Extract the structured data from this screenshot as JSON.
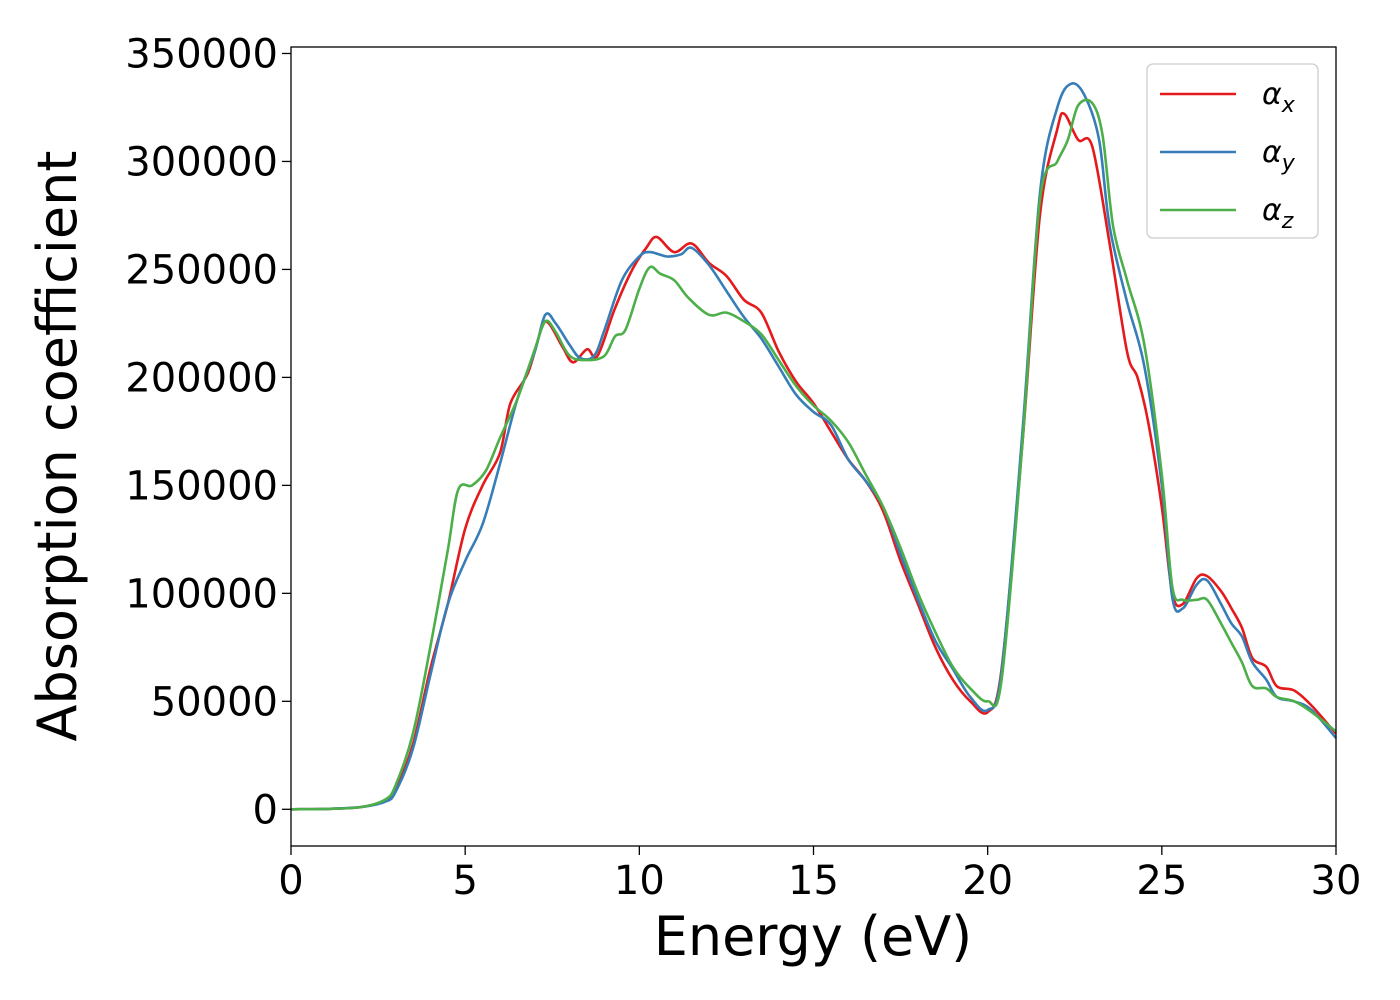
{
  "chart_data": {
    "type": "line",
    "title": "",
    "xlabel": "Energy (eV)",
    "ylabel": "Absorption coefficient",
    "xlim": [
      0,
      30
    ],
    "ylim": [
      -17000,
      353000
    ],
    "x_ticks": [
      0,
      5,
      10,
      15,
      20,
      25,
      30
    ],
    "y_ticks": [
      0,
      50000,
      100000,
      150000,
      200000,
      250000,
      300000,
      350000
    ],
    "grid": false,
    "legend_position": "top-right",
    "series": [
      {
        "name": "α",
        "subscript": "x",
        "color": "#e41a1c",
        "points": [
          [
            0,
            0
          ],
          [
            1,
            200
          ],
          [
            2,
            1000
          ],
          [
            2.7,
            4000
          ],
          [
            3,
            9000
          ],
          [
            3.5,
            30000
          ],
          [
            4,
            65000
          ],
          [
            4.5,
            95000
          ],
          [
            5,
            130000
          ],
          [
            5.5,
            150000
          ],
          [
            6,
            165000
          ],
          [
            6.3,
            188000
          ],
          [
            6.8,
            202000
          ],
          [
            7.2,
            223000
          ],
          [
            7.4,
            225000
          ],
          [
            7.8,
            214000
          ],
          [
            8.1,
            207000
          ],
          [
            8.5,
            213000
          ],
          [
            8.8,
            210000
          ],
          [
            9.3,
            232000
          ],
          [
            9.8,
            250000
          ],
          [
            10.2,
            260000
          ],
          [
            10.5,
            265000
          ],
          [
            11,
            258000
          ],
          [
            11.5,
            262000
          ],
          [
            12,
            253000
          ],
          [
            12.5,
            247000
          ],
          [
            13,
            236000
          ],
          [
            13.5,
            230000
          ],
          [
            14,
            212000
          ],
          [
            14.5,
            198000
          ],
          [
            15,
            188000
          ],
          [
            15.5,
            175000
          ],
          [
            16,
            162000
          ],
          [
            16.5,
            152000
          ],
          [
            17,
            138000
          ],
          [
            17.5,
            115000
          ],
          [
            18,
            95000
          ],
          [
            18.5,
            75000
          ],
          [
            19,
            60000
          ],
          [
            19.5,
            50000
          ],
          [
            20,
            45000
          ],
          [
            20.4,
            65000
          ],
          [
            21,
            170000
          ],
          [
            21.5,
            275000
          ],
          [
            22,
            315000
          ],
          [
            22.2,
            322000
          ],
          [
            22.6,
            310000
          ],
          [
            23,
            307000
          ],
          [
            23.5,
            262000
          ],
          [
            24,
            212000
          ],
          [
            24.3,
            200000
          ],
          [
            24.6,
            180000
          ],
          [
            25,
            140000
          ],
          [
            25.3,
            100000
          ],
          [
            25.6,
            95000
          ],
          [
            26,
            107000
          ],
          [
            26.3,
            108000
          ],
          [
            26.7,
            101000
          ],
          [
            27,
            93000
          ],
          [
            27.3,
            84000
          ],
          [
            27.6,
            70000
          ],
          [
            28,
            66000
          ],
          [
            28.3,
            57000
          ],
          [
            28.8,
            55000
          ],
          [
            29.3,
            48000
          ],
          [
            30,
            35000
          ]
        ]
      },
      {
        "name": "α",
        "subscript": "y",
        "color": "#377eb8",
        "points": [
          [
            0,
            0
          ],
          [
            1,
            200
          ],
          [
            2,
            1000
          ],
          [
            2.7,
            3500
          ],
          [
            3,
            8000
          ],
          [
            3.5,
            28000
          ],
          [
            4,
            62000
          ],
          [
            4.5,
            95000
          ],
          [
            5,
            115000
          ],
          [
            5.5,
            132000
          ],
          [
            6,
            160000
          ],
          [
            6.5,
            190000
          ],
          [
            7,
            212000
          ],
          [
            7.3,
            229000
          ],
          [
            7.6,
            225000
          ],
          [
            8,
            215000
          ],
          [
            8.3,
            209000
          ],
          [
            8.7,
            210000
          ],
          [
            9,
            222000
          ],
          [
            9.5,
            245000
          ],
          [
            10,
            256000
          ],
          [
            10.3,
            258000
          ],
          [
            10.8,
            256000
          ],
          [
            11.2,
            257000
          ],
          [
            11.5,
            260000
          ],
          [
            12,
            252000
          ],
          [
            12.5,
            240000
          ],
          [
            13,
            228000
          ],
          [
            13.5,
            218000
          ],
          [
            14,
            205000
          ],
          [
            14.5,
            192000
          ],
          [
            15,
            184000
          ],
          [
            15.5,
            178000
          ],
          [
            16,
            162000
          ],
          [
            16.5,
            152000
          ],
          [
            17,
            140000
          ],
          [
            17.5,
            118000
          ],
          [
            18,
            97000
          ],
          [
            18.5,
            78000
          ],
          [
            19,
            65000
          ],
          [
            19.5,
            52000
          ],
          [
            20,
            46000
          ],
          [
            20.4,
            64000
          ],
          [
            21,
            175000
          ],
          [
            21.5,
            285000
          ],
          [
            22,
            325000
          ],
          [
            22.4,
            336000
          ],
          [
            22.8,
            330000
          ],
          [
            23.2,
            310000
          ],
          [
            23.5,
            270000
          ],
          [
            24,
            235000
          ],
          [
            24.5,
            205000
          ],
          [
            25,
            150000
          ],
          [
            25.3,
            98000
          ],
          [
            25.6,
            93000
          ],
          [
            26,
            104000
          ],
          [
            26.3,
            106000
          ],
          [
            26.7,
            95000
          ],
          [
            27,
            86000
          ],
          [
            27.3,
            80000
          ],
          [
            27.6,
            68000
          ],
          [
            28,
            60000
          ],
          [
            28.3,
            52000
          ],
          [
            28.8,
            50000
          ],
          [
            29.3,
            46000
          ],
          [
            30,
            33000
          ]
        ]
      },
      {
        "name": "α",
        "subscript": "z",
        "color": "#4daf4a",
        "points": [
          [
            0,
            0
          ],
          [
            1,
            200
          ],
          [
            2,
            1000
          ],
          [
            2.7,
            4500
          ],
          [
            3,
            11000
          ],
          [
            3.5,
            35000
          ],
          [
            4,
            75000
          ],
          [
            4.5,
            120000
          ],
          [
            4.8,
            148000
          ],
          [
            5.2,
            150000
          ],
          [
            5.6,
            157000
          ],
          [
            6,
            172000
          ],
          [
            6.5,
            190000
          ],
          [
            7,
            213000
          ],
          [
            7.3,
            226000
          ],
          [
            7.6,
            221000
          ],
          [
            8,
            210000
          ],
          [
            8.5,
            208000
          ],
          [
            9,
            210000
          ],
          [
            9.3,
            219000
          ],
          [
            9.6,
            222000
          ],
          [
            10,
            241000
          ],
          [
            10.3,
            251000
          ],
          [
            10.6,
            248000
          ],
          [
            11,
            245000
          ],
          [
            11.4,
            237000
          ],
          [
            12,
            229000
          ],
          [
            12.5,
            230000
          ],
          [
            13,
            226000
          ],
          [
            13.5,
            220000
          ],
          [
            14,
            208000
          ],
          [
            14.5,
            196000
          ],
          [
            15,
            187000
          ],
          [
            15.5,
            180000
          ],
          [
            16,
            170000
          ],
          [
            16.5,
            155000
          ],
          [
            17,
            140000
          ],
          [
            17.5,
            121000
          ],
          [
            18,
            100000
          ],
          [
            18.5,
            82000
          ],
          [
            19,
            66000
          ],
          [
            19.5,
            56000
          ],
          [
            20,
            50000
          ],
          [
            20.4,
            60000
          ],
          [
            21,
            170000
          ],
          [
            21.5,
            282000
          ],
          [
            22,
            300000
          ],
          [
            22.3,
            310000
          ],
          [
            22.6,
            326000
          ],
          [
            23,
            327000
          ],
          [
            23.3,
            312000
          ],
          [
            23.6,
            270000
          ],
          [
            24,
            245000
          ],
          [
            24.5,
            215000
          ],
          [
            25,
            155000
          ],
          [
            25.3,
            103000
          ],
          [
            25.6,
            97000
          ],
          [
            26,
            97000
          ],
          [
            26.3,
            97000
          ],
          [
            26.7,
            86000
          ],
          [
            27,
            77000
          ],
          [
            27.3,
            68000
          ],
          [
            27.6,
            57000
          ],
          [
            28,
            56000
          ],
          [
            28.3,
            52000
          ],
          [
            28.8,
            50000
          ],
          [
            29.3,
            45000
          ],
          [
            30,
            36000
          ]
        ]
      }
    ]
  }
}
